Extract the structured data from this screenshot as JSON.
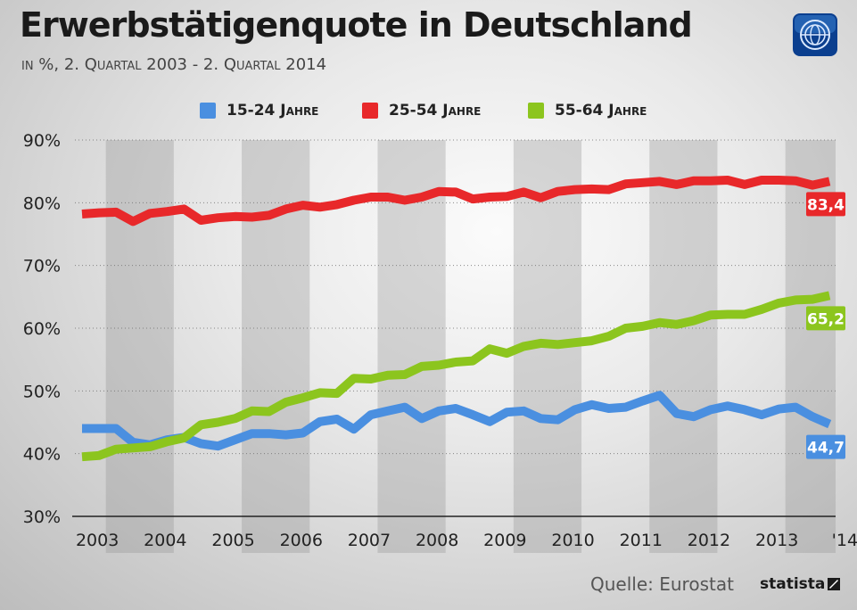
{
  "title": "Erwerbstätigenquote in Deutschland",
  "subtitle": "in %, 2. Quartal 2003 - 2. Quartal 2014",
  "source": "Quelle: Eurostat",
  "brand": "statista",
  "logo_icon": "tagesschau-globe-icon",
  "colors": {
    "s1": "#4a8fe0",
    "s2": "#e8282a",
    "s3": "#8cc51e",
    "shade": "#8f8f8f"
  },
  "chart_data": {
    "type": "line",
    "ylim": [
      30,
      90
    ],
    "y_ticks": [
      "90%",
      "80%",
      "70%",
      "60%",
      "50%",
      "40%",
      "30%"
    ],
    "y_tick_values": [
      90,
      80,
      70,
      60,
      50,
      40,
      30
    ],
    "x_labels": [
      "2003",
      "2004",
      "2005",
      "2006",
      "2007",
      "2008",
      "2009",
      "2010",
      "2011",
      "2012",
      "2013",
      "'14"
    ],
    "quarters": [
      "2003 Q2",
      "2003 Q3",
      "2003 Q4",
      "2004 Q1",
      "2004 Q2",
      "2004 Q3",
      "2004 Q4",
      "2005 Q1",
      "2005 Q2",
      "2005 Q3",
      "2005 Q4",
      "2006 Q1",
      "2006 Q2",
      "2006 Q3",
      "2006 Q4",
      "2007 Q1",
      "2007 Q2",
      "2007 Q3",
      "2007 Q4",
      "2008 Q1",
      "2008 Q2",
      "2008 Q3",
      "2008 Q4",
      "2009 Q1",
      "2009 Q2",
      "2009 Q3",
      "2009 Q4",
      "2010 Q1",
      "2010 Q2",
      "2010 Q3",
      "2010 Q4",
      "2011 Q1",
      "2011 Q2",
      "2011 Q3",
      "2011 Q4",
      "2012 Q1",
      "2012 Q2",
      "2012 Q3",
      "2012 Q4",
      "2013 Q1",
      "2013 Q2",
      "2013 Q3",
      "2013 Q4",
      "2014 Q1",
      "2014 Q2"
    ],
    "series": [
      {
        "name": "15-24 Jahre",
        "color": "#4a8fe0",
        "end_label": "44,7",
        "values": [
          44.0,
          44.0,
          44.0,
          41.8,
          41.4,
          42.2,
          42.6,
          41.6,
          41.2,
          42.2,
          43.2,
          43.2,
          43.0,
          43.3,
          45.1,
          45.5,
          43.9,
          46.2,
          46.8,
          47.4,
          45.6,
          46.8,
          47.2,
          46.2,
          45.1,
          46.6,
          46.8,
          45.6,
          45.4,
          47.0,
          47.8,
          47.2,
          47.4,
          48.4,
          49.3,
          46.4,
          45.9,
          47.0,
          47.6,
          47.0,
          46.2,
          47.1,
          47.4,
          45.9,
          44.7
        ]
      },
      {
        "name": "25-54 Jahre",
        "color": "#e8282a",
        "end_label": "83,4",
        "values": [
          78.2,
          78.4,
          78.5,
          77.0,
          78.3,
          78.6,
          79.0,
          77.2,
          77.6,
          77.8,
          77.7,
          78.0,
          79.0,
          79.6,
          79.3,
          79.7,
          80.4,
          80.9,
          80.9,
          80.4,
          80.9,
          81.8,
          81.7,
          80.6,
          80.9,
          81.0,
          81.7,
          80.8,
          81.8,
          82.1,
          82.2,
          82.1,
          83.0,
          83.2,
          83.4,
          82.9,
          83.5,
          83.5,
          83.6,
          82.9,
          83.6,
          83.6,
          83.5,
          82.8,
          83.4
        ]
      },
      {
        "name": "55-64 Jahre",
        "color": "#8cc51e",
        "end_label": "65,2",
        "values": [
          39.5,
          39.7,
          40.7,
          40.9,
          41.1,
          41.9,
          42.5,
          44.6,
          45.0,
          45.6,
          46.8,
          46.7,
          48.2,
          48.9,
          49.7,
          49.6,
          52.0,
          51.9,
          52.5,
          52.6,
          53.9,
          54.1,
          54.6,
          54.8,
          56.7,
          56.0,
          57.1,
          57.6,
          57.4,
          57.7,
          58.0,
          58.7,
          60.0,
          60.3,
          60.9,
          60.6,
          61.2,
          62.1,
          62.2,
          62.2,
          63.0,
          64.0,
          64.5,
          64.6,
          65.2
        ]
      }
    ]
  }
}
